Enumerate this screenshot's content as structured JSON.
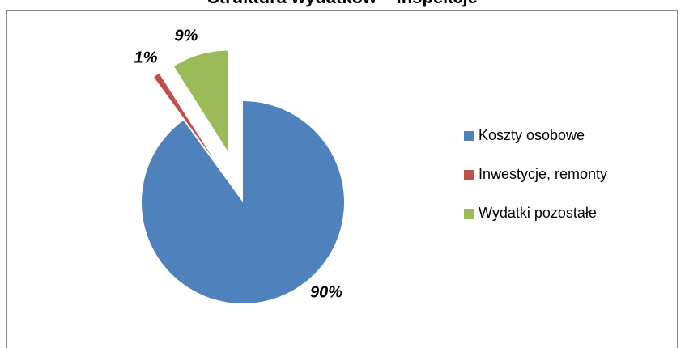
{
  "chart_data": {
    "type": "pie",
    "title": "Struktura wydatków – inspekcje",
    "categories": [
      "Koszty osobowe",
      "Inwestycje, remonty",
      "Wydatki pozostałe"
    ],
    "values": [
      90,
      1,
      9
    ],
    "value_labels": [
      "90%",
      "1%",
      "9%"
    ],
    "colors": [
      "#4f81bd",
      "#c0504d",
      "#9bbb59"
    ],
    "legend": "right"
  }
}
